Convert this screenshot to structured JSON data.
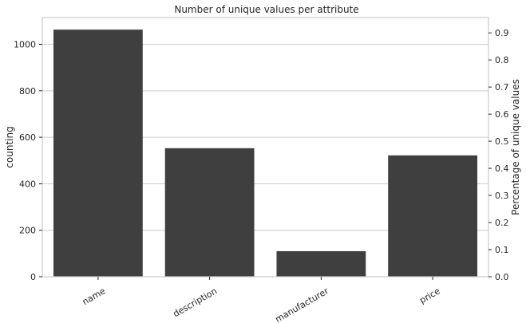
{
  "chart_data": {
    "type": "bar",
    "title": "Number of unique values per attribute",
    "xlabel": "",
    "ylabel": "counting",
    "y2label": "Percentage of unique values",
    "categories": [
      "name",
      "description",
      "manufacturer",
      "price"
    ],
    "values": [
      1063,
      553,
      110,
      522
    ],
    "ylim": [
      0,
      1115
    ],
    "yticks": [
      0,
      200,
      400,
      600,
      800,
      1000
    ],
    "y2lim": [
      0,
      0.9565
    ],
    "y2ticks": [
      0.0,
      0.1,
      0.2,
      0.3,
      0.4,
      0.5,
      0.6,
      0.7,
      0.8,
      0.9
    ],
    "y2ticklabels": [
      "0.0",
      "0.1",
      "0.2",
      "0.3",
      "0.4",
      "0.5",
      "0.6",
      "0.7",
      "0.8",
      "0.9"
    ],
    "grid": true,
    "bar_color": "#3f3f3f"
  }
}
